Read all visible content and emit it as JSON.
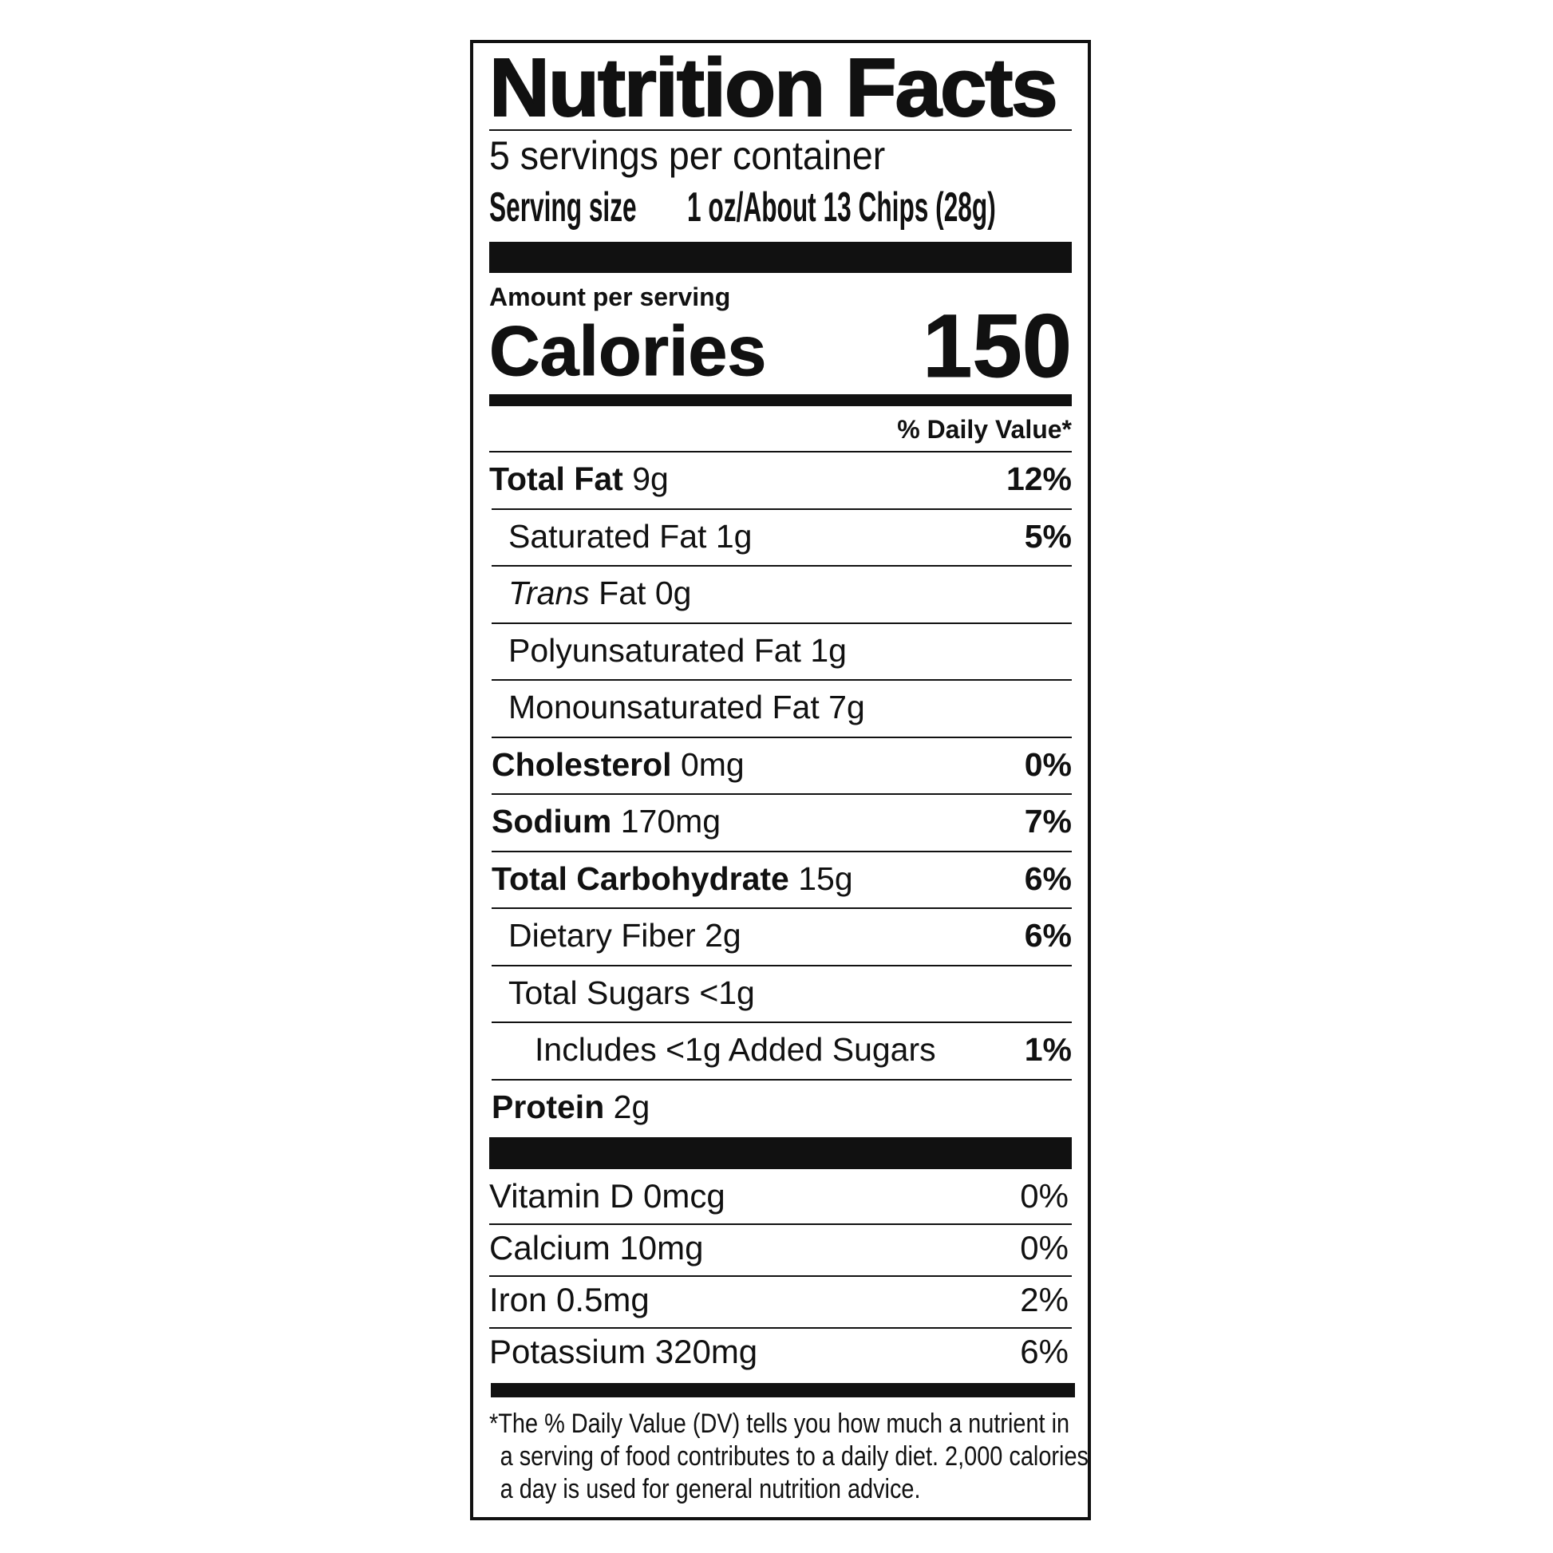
{
  "label": {
    "title": "Nutrition Facts",
    "servings_per_container": "5 servings per container",
    "serving_size_label": "Serving size",
    "serving_size_value": "1 oz/About 13 Chips (28g)",
    "amount_per_serving": "Amount per serving",
    "calories_label": "Calories",
    "calories_value": "150",
    "daily_value_header": "% Daily Value*",
    "nutrients": [
      {
        "name": "Total Fat",
        "amount": "9g",
        "dv": "12%",
        "bold": true,
        "indent": 0
      },
      {
        "name": "Saturated Fat",
        "amount": "1g",
        "dv": "5%",
        "bold": false,
        "indent": 1
      },
      {
        "name": "Trans",
        "name_suffix": "Fat",
        "amount": "0g",
        "dv": "",
        "bold": false,
        "indent": 1
      },
      {
        "name": "Polyunsaturated Fat",
        "amount": "1g",
        "dv": "",
        "bold": false,
        "indent": 1
      },
      {
        "name": "Monounsaturated Fat",
        "amount": "7g",
        "dv": "",
        "bold": false,
        "indent": 1
      },
      {
        "name": "Cholesterol",
        "amount": "0mg",
        "dv": "0%",
        "bold": true,
        "indent": 0
      },
      {
        "name": "Sodium",
        "amount": "170mg",
        "dv": "7%",
        "bold": true,
        "indent": 0
      },
      {
        "name": "Total Carbohydrate",
        "amount": "15g",
        "dv": "6%",
        "bold": true,
        "indent": 0
      },
      {
        "name": "Dietary Fiber",
        "amount": "2g",
        "dv": "6%",
        "bold": false,
        "indent": 1
      },
      {
        "name": "Total Sugars",
        "amount": "<1g",
        "dv": "",
        "bold": false,
        "indent": 1
      },
      {
        "name": "Includes <1g Added Sugars",
        "amount": "",
        "dv": "1%",
        "bold": false,
        "indent": 2
      },
      {
        "name": "Protein",
        "amount": "2g",
        "dv": "",
        "bold": true,
        "indent": 0
      }
    ],
    "vitamins": [
      {
        "name": "Vitamin D",
        "amount": "0mcg",
        "dv": "0%"
      },
      {
        "name": "Calcium",
        "amount": "10mg",
        "dv": "0%"
      },
      {
        "name": "Iron",
        "amount": "0.5mg",
        "dv": "2%"
      },
      {
        "name": "Potassium",
        "amount": "320mg",
        "dv": "6%"
      }
    ],
    "footnote": [
      "*The % Daily Value (DV) tells you how much a nutrient in",
      "a serving of food contributes to a daily diet. 2,000 calories",
      "a day is used for general nutrition advice."
    ]
  }
}
